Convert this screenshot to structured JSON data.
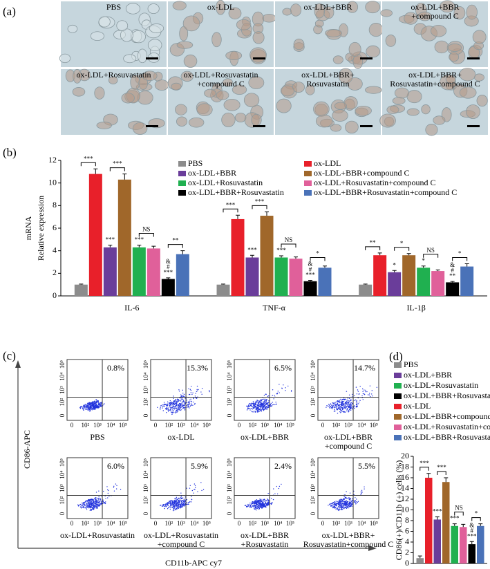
{
  "panels": {
    "a": {
      "label": "(a)",
      "images": [
        [
          "PBS"
        ],
        [
          "ox-LDL"
        ],
        [
          "ox-LDL+BBR"
        ],
        [
          "ox-LDL+BBR",
          "+compound C"
        ],
        [
          "ox-LDL+Rosuvastatin"
        ],
        [
          "ox-LDL+Rosuvastatin",
          "+compound C"
        ],
        [
          "ox-LDL+BBR+",
          "Rosuvastatin"
        ],
        [
          "ox-LDL+BBR+",
          "Rosuvastatin+compound C"
        ]
      ]
    },
    "c": {
      "label": "(c)",
      "y_axis": "CD86-APC",
      "x_axis": "CD11b-APC cy7",
      "ticks": [
        "0",
        "10²",
        "10³",
        "10⁴",
        "10⁵"
      ],
      "plots": [
        {
          "name": [
            "PBS"
          ],
          "percent": "0.8%"
        },
        {
          "name": [
            "ox-LDL"
          ],
          "percent": "15.3%"
        },
        {
          "name": [
            "ox-LDL+BBR"
          ],
          "percent": "6.5%"
        },
        {
          "name": [
            "ox-LDL+BBR",
            "+compound C"
          ],
          "percent": "14.7%"
        },
        {
          "name": [
            "ox-LDL+Rosuvastatin"
          ],
          "percent": "6.0%"
        },
        {
          "name": [
            "ox-LDL+Rosuvastatin",
            "+compound C"
          ],
          "percent": "5.9%"
        },
        {
          "name": [
            "ox-LDL+BBR",
            "+Rosuvastatin"
          ],
          "percent": "2.4%"
        },
        {
          "name": [
            "ox-LDL+BBR+",
            "Rosuvastatin+compound C"
          ],
          "percent": "5.5%"
        }
      ]
    }
  },
  "chart_data": [
    {
      "type": "bar",
      "label": "(b)",
      "ylabel": [
        "mRNA",
        "Relative expression"
      ],
      "categories": [
        "IL-6",
        "TNF-α",
        "IL-1β"
      ],
      "ylim": [
        0,
        12
      ],
      "yticks": [
        0,
        2,
        4,
        6,
        8,
        10,
        12
      ],
      "series": [
        {
          "name": "PBS",
          "color": "#8c8c8c",
          "values": [
            1.0,
            1.0,
            1.0
          ],
          "errors": [
            0.05,
            0.05,
            0.05
          ],
          "bracket_labels": [
            "***",
            "***",
            "**"
          ]
        },
        {
          "name": "ox-LDL",
          "color": "#e8202a",
          "values": [
            10.8,
            6.8,
            3.6
          ],
          "errors": [
            0.45,
            0.35,
            0.2
          ]
        },
        {
          "name": "ox-LDL+BBR",
          "color": "#6a3d9a",
          "values": [
            4.3,
            3.4,
            2.1
          ],
          "errors": [
            0.2,
            0.2,
            0.15
          ],
          "significance": [
            [
              "***"
            ],
            [
              "***"
            ],
            [
              "*"
            ]
          ],
          "bracket_labels": [
            "***",
            "***",
            "*"
          ]
        },
        {
          "name": "ox-LDL+BBR+compound C",
          "color": "#a0672a",
          "values": [
            10.3,
            7.1,
            3.6
          ],
          "errors": [
            0.5,
            0.35,
            0.15
          ]
        },
        {
          "name": "ox-LDL+Rosuvastatin",
          "color": "#20b050",
          "values": [
            4.3,
            3.4,
            2.5
          ],
          "errors": [
            0.2,
            0.15,
            0.15
          ],
          "significance": [
            [
              "***"
            ],
            [
              "***"
            ],
            [
              "*"
            ]
          ],
          "bracket_labels": [
            "NS",
            "NS",
            "NS"
          ]
        },
        {
          "name": "ox-LDL+Rosuvastatin+compound C",
          "color": "#e0609a",
          "values": [
            4.2,
            3.3,
            2.2
          ],
          "errors": [
            0.2,
            0.15,
            0.1
          ]
        },
        {
          "name": "ox-LDL+BBR+Rosuvastatin",
          "color": "#000000",
          "values": [
            1.5,
            1.3,
            1.2
          ],
          "errors": [
            0.1,
            0.08,
            0.08
          ],
          "significance": [
            [
              "&",
              "#",
              "***"
            ],
            [
              "&",
              "#",
              "***"
            ],
            [
              "&",
              "#",
              "**"
            ]
          ],
          "bracket_labels": [
            "**",
            "*",
            "*"
          ]
        },
        {
          "name": "ox-LDL+BBR+Rosuvastatin+compound C",
          "color": "#4a72b8",
          "values": [
            3.7,
            2.5,
            2.6
          ],
          "errors": [
            0.3,
            0.15,
            0.25
          ]
        }
      ]
    },
    {
      "type": "bar",
      "label": "(d)",
      "ylabel": [
        "CD86(+)/CD11b (+) cells (%)"
      ],
      "ylim": [
        0,
        20
      ],
      "yticks": [
        0,
        2,
        4,
        6,
        8,
        10,
        12,
        14,
        16,
        18,
        20
      ],
      "series": [
        {
          "name": "PBS",
          "color": "#8c8c8c",
          "values": [
            1.0
          ],
          "errors": [
            0.4
          ],
          "bracket_labels": [
            "***"
          ]
        },
        {
          "name": "ox-LDL",
          "color": "#e8202a",
          "values": [
            16.0
          ],
          "errors": [
            0.8
          ]
        },
        {
          "name": "ox-LDL+BBR",
          "color": "#6a3d9a",
          "values": [
            8.2
          ],
          "errors": [
            0.5
          ],
          "significance": [
            [
              "***"
            ]
          ],
          "bracket_labels": [
            "***"
          ]
        },
        {
          "name": "ox-LDL+BBR+compound C",
          "color": "#a0672a",
          "values": [
            15.2
          ],
          "errors": [
            0.8
          ]
        },
        {
          "name": "ox-LDL+Rosuvastatin",
          "color": "#20b050",
          "values": [
            7.0
          ],
          "errors": [
            0.4
          ],
          "significance": [
            [
              "***"
            ]
          ],
          "bracket_labels": [
            "NS"
          ]
        },
        {
          "name": "ox-LDL+Rosuvastatin+compound C",
          "color": "#e0609a",
          "values": [
            6.8
          ],
          "errors": [
            0.5
          ]
        },
        {
          "name": "ox-LDL+BBR+Rosuvastatin",
          "color": "#000000",
          "values": [
            3.6
          ],
          "errors": [
            0.5
          ],
          "significance": [
            [
              "&",
              "#",
              "***"
            ]
          ],
          "bracket_labels": [
            "*"
          ]
        },
        {
          "name": "ox-LDL+BBR+Rosuvastatin+compound C",
          "color": "#4a72b8",
          "values": [
            7.0
          ],
          "errors": [
            0.4
          ]
        }
      ]
    }
  ]
}
